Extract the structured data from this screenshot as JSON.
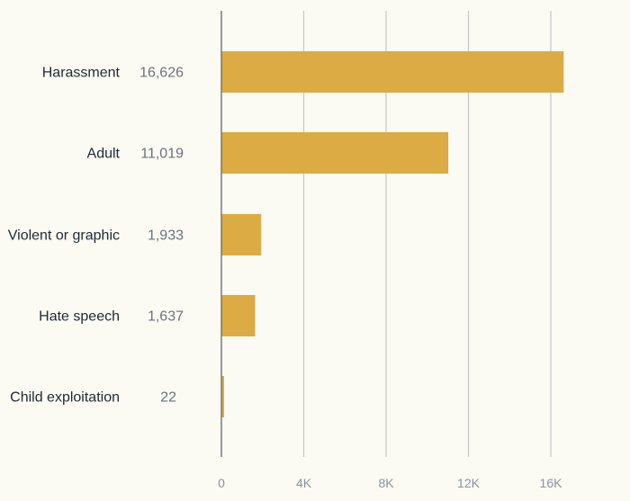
{
  "chart_data": {
    "type": "bar",
    "orientation": "horizontal",
    "categories": [
      "Harassment",
      "Adult",
      "Violent or graphic",
      "Hate speech",
      "Child exploitation"
    ],
    "values": [
      16626,
      11019,
      1933,
      1637,
      22
    ],
    "value_labels": [
      "16,626",
      "11,019",
      "1,933",
      "1,637",
      "22"
    ],
    "x_ticks": [
      0,
      4000,
      8000,
      12000,
      16000
    ],
    "x_tick_labels": [
      "0",
      "4K",
      "8K",
      "12K",
      "16K"
    ],
    "xlim": [
      0,
      20000
    ],
    "title": "",
    "xlabel": "",
    "ylabel": "",
    "grid": true,
    "colors": {
      "bar": "#dcab43",
      "background": "#fbfaf3",
      "grid": "#c8c8c8",
      "axis": "#6b7380"
    }
  }
}
